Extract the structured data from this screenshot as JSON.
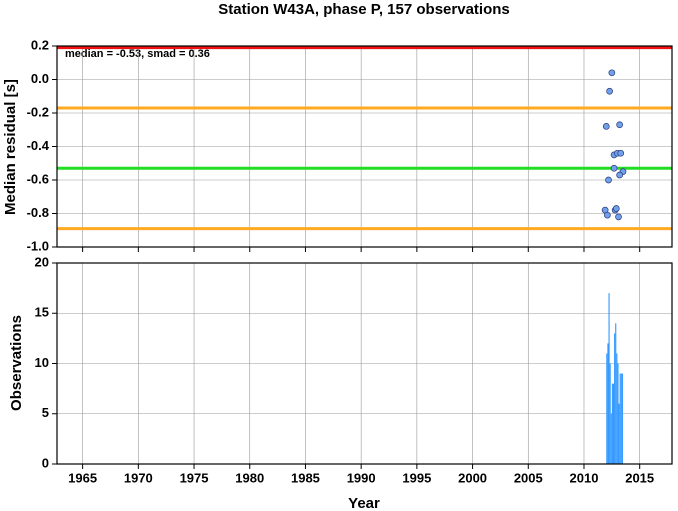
{
  "chart_data": [
    {
      "type": "scatter",
      "title": "Station W43A, phase P, 157 observations",
      "ylabel": "Median residual [s]",
      "annotation": "median = -0.53, smad = 0.36",
      "x": [
        2012.5,
        2012.3,
        2012.0,
        2013.2,
        2012.7,
        2013.0,
        2013.3,
        2012.7,
        2013.5,
        2013.2,
        2012.2,
        2011.9,
        2012.1,
        2012.8,
        2012.9,
        2013.1
      ],
      "values": [
        0.04,
        -0.07,
        -0.28,
        -0.27,
        -0.45,
        -0.44,
        -0.44,
        -0.53,
        -0.55,
        -0.57,
        -0.6,
        -0.78,
        -0.81,
        -0.78,
        -0.77,
        -0.82
      ],
      "color": "#6fa0e8",
      "reference_lines": [
        {
          "value": 0.19,
          "color": "#ee1111"
        },
        {
          "value": -0.17,
          "color": "#ffaa22"
        },
        {
          "value": -0.53,
          "color": "#22dd22"
        },
        {
          "value": -0.89,
          "color": "#ffaa22"
        }
      ],
      "xlim": [
        1962.7,
        2017.9
      ],
      "xticks": [
        1965,
        1970,
        1975,
        1980,
        1985,
        1990,
        1995,
        2000,
        2005,
        2010,
        2015
      ],
      "ylim": [
        -1,
        0.2
      ],
      "yticks": [
        0.2,
        {
          "value": 0,
          "label": "0.0"
        },
        -0.2,
        -0.4,
        -0.6,
        -0.8,
        {
          "value": -1,
          "label": "-1.0"
        }
      ],
      "grid": true
    },
    {
      "type": "histogram",
      "xlabel": "Year",
      "ylabel": "Observations",
      "bins": [
        2012.0,
        2012.1,
        2012.2,
        2012.3,
        2012.4,
        2012.5,
        2012.6,
        2012.7,
        2012.8,
        2012.9,
        2013.0,
        2013.1,
        2013.2,
        2013.3,
        2013.4,
        2013.5
      ],
      "counts": [
        11,
        12,
        17,
        10,
        5,
        8,
        8,
        13,
        14,
        11,
        10,
        6,
        9,
        9,
        9
      ],
      "color": "#3399ff",
      "xlim": [
        1962.7,
        2017.9
      ],
      "xticks": [
        1965,
        1970,
        1975,
        1980,
        1985,
        1990,
        1995,
        2000,
        2005,
        2010,
        2015
      ],
      "ylim": [
        0,
        20
      ],
      "yticks": [
        0,
        5,
        10,
        15,
        20
      ],
      "grid": true
    }
  ]
}
